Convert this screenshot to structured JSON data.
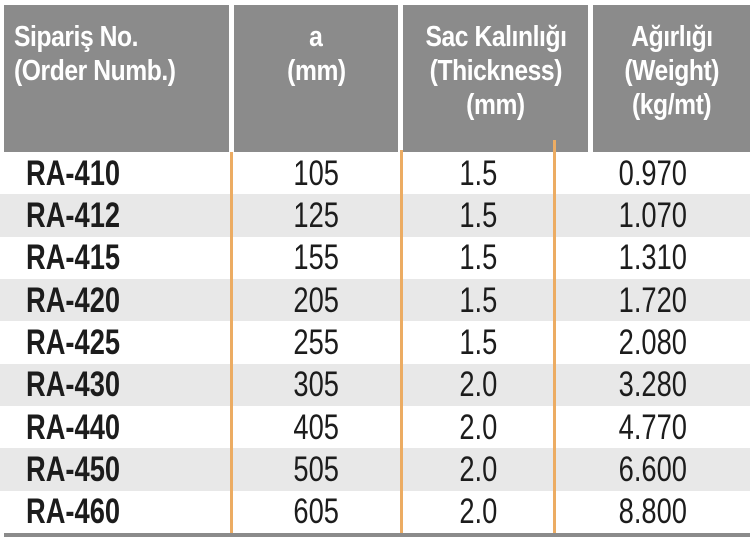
{
  "table": {
    "columns": [
      {
        "id": "order_no",
        "label_lines": [
          "Sipariş No.",
          "(Order Numb.)",
          ""
        ]
      },
      {
        "id": "a_mm",
        "label_lines": [
          "a",
          "(mm)",
          ""
        ]
      },
      {
        "id": "thickness",
        "label_lines": [
          "Sac Kalınlığı",
          "(Thickness)",
          "(mm)"
        ]
      },
      {
        "id": "weight",
        "label_lines": [
          "Ağırlığı",
          "(Weight)",
          "(kg/mt)"
        ]
      }
    ],
    "rows": [
      {
        "order_no": "RA-410",
        "a_mm": "105",
        "thickness_mm": "1.5",
        "weight_kg_mt": "0.970"
      },
      {
        "order_no": "RA-412",
        "a_mm": "125",
        "thickness_mm": "1.5",
        "weight_kg_mt": "1.070"
      },
      {
        "order_no": "RA-415",
        "a_mm": "155",
        "thickness_mm": "1.5",
        "weight_kg_mt": "1.310"
      },
      {
        "order_no": "RA-420",
        "a_mm": "205",
        "thickness_mm": "1.5",
        "weight_kg_mt": "1.720"
      },
      {
        "order_no": "RA-425",
        "a_mm": "255",
        "thickness_mm": "1.5",
        "weight_kg_mt": "2.080"
      },
      {
        "order_no": "RA-430",
        "a_mm": "305",
        "thickness_mm": "2.0",
        "weight_kg_mt": "3.280"
      },
      {
        "order_no": "RA-440",
        "a_mm": "405",
        "thickness_mm": "2.0",
        "weight_kg_mt": "4.770"
      },
      {
        "order_no": "RA-450",
        "a_mm": "505",
        "thickness_mm": "2.0",
        "weight_kg_mt": "6.600"
      },
      {
        "order_no": "RA-460",
        "a_mm": "605",
        "thickness_mm": "2.0",
        "weight_kg_mt": "8.800"
      }
    ]
  },
  "colors": {
    "header_bg": "#8b8b8b",
    "header_text": "#ffffff",
    "row_alt_bg": "#e8e8e8",
    "divider_orange": "#ecac63",
    "body_text": "#1c1c1c"
  }
}
